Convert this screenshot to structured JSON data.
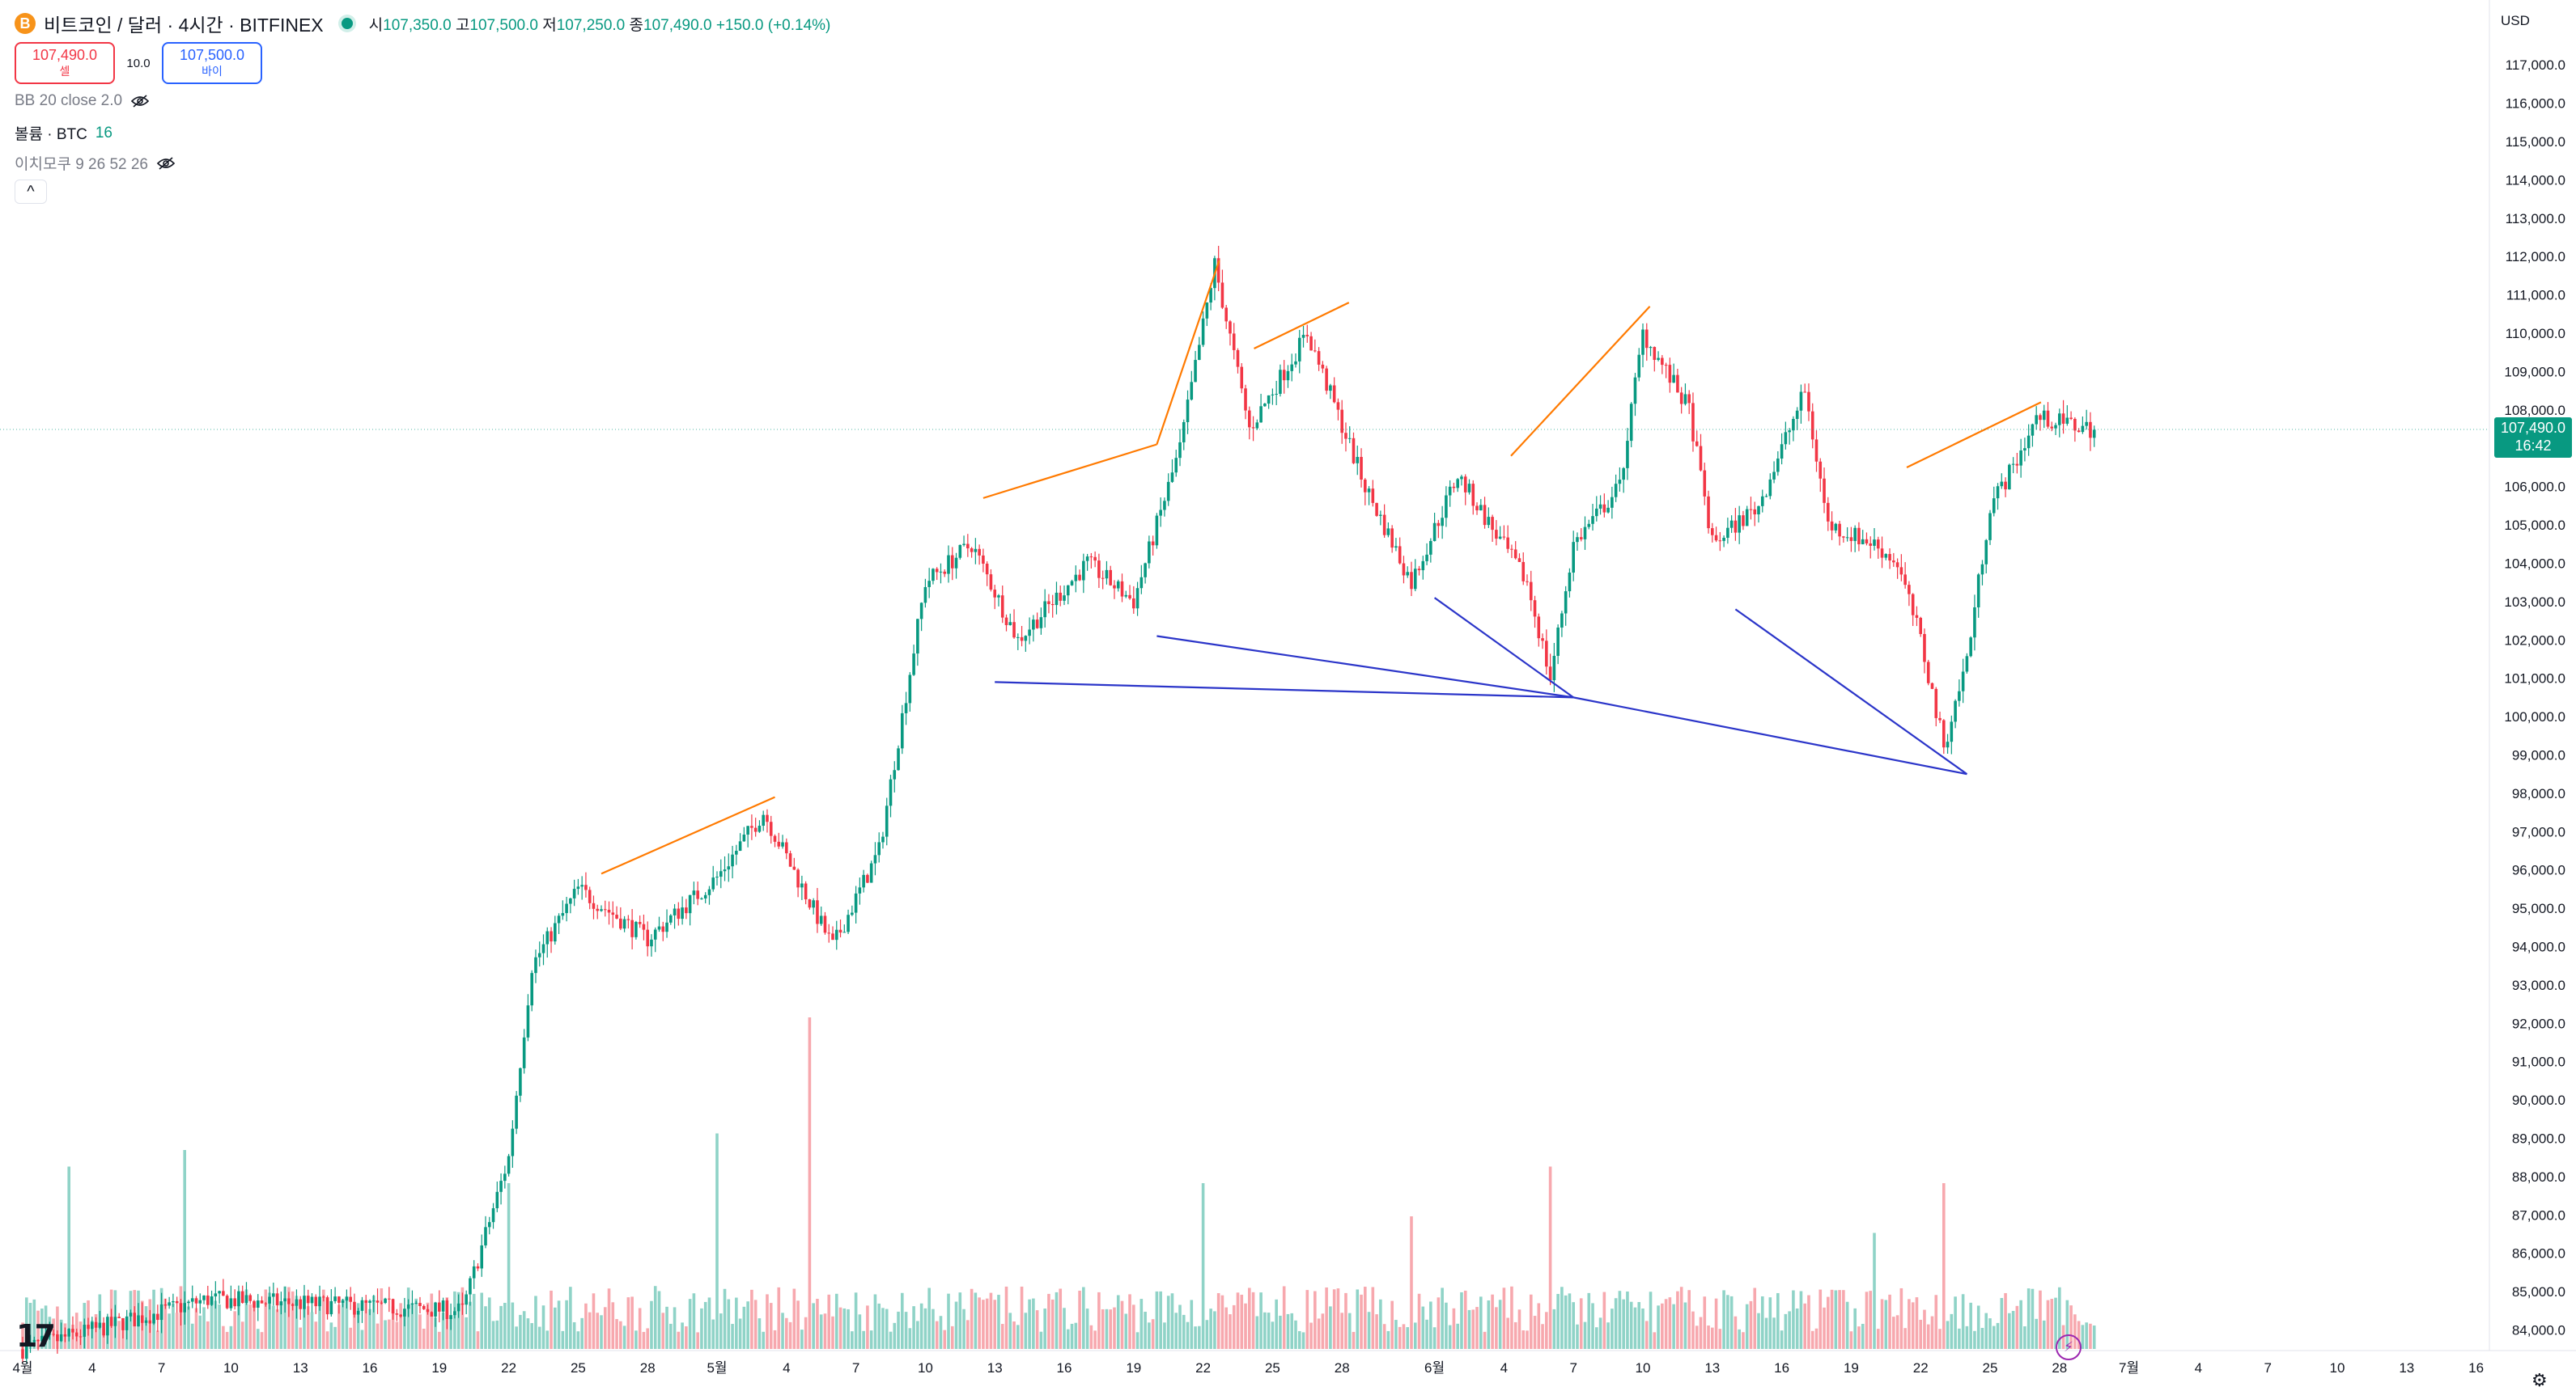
{
  "header": {
    "symbol_title": "비트코인 / 달러 · 4시간 · BITFINEX",
    "ohlc": [
      {
        "key": "시",
        "value": "107,350.0"
      },
      {
        "key": "고",
        "value": "107,500.0"
      },
      {
        "key": "저",
        "value": "107,250.0"
      },
      {
        "key": "종",
        "value": "107,490.0"
      }
    ],
    "change": "+150.0 (+0.14%)",
    "logo_text": "B"
  },
  "trade": {
    "sell_price": "107,490.0",
    "sell_label": "셀",
    "spread": "10.0",
    "buy_price": "107,500.0",
    "buy_label": "바이"
  },
  "indicators": {
    "bb": "BB 20 close 2.0",
    "volume_name": "볼륨 · BTC",
    "volume_value": "16",
    "ichimoku": "이치모쿠 9 26 52 26",
    "collapse_icon": "^"
  },
  "price_axis": {
    "currency": "USD",
    "last_price": "107,490.0",
    "countdown": "16:42"
  },
  "footer": {
    "logo": "17",
    "flash_icon": "⚡",
    "settings_icon": "⚙"
  },
  "colors": {
    "up": "#089981",
    "down": "#f23645",
    "resistance_lines": "#ff7a00",
    "support_lines": "#2b35c9",
    "volume_up": "#8fd3c7",
    "volume_down": "#f7a8ae"
  },
  "chart_data": {
    "type": "candlestick",
    "timeframe": "4h",
    "y_tick_labels": [
      "117,000.0",
      "116,000.0",
      "115,000.0",
      "114,000.0",
      "113,000.0",
      "112,000.0",
      "111,000.0",
      "110,000.0",
      "109,000.0",
      "108,000.0",
      "107,000.0",
      "106,000.0",
      "105,000.0",
      "104,000.0",
      "103,000.0",
      "102,000.0",
      "101,000.0",
      "100,000.0",
      "99,000.0",
      "98,000.0",
      "97,000.0",
      "96,000.0",
      "95,000.0",
      "94,000.0",
      "93,000.0",
      "92,000.0",
      "91,000.0",
      "90,000.0",
      "89,000.0",
      "88,000.0",
      "87,000.0",
      "86,000.0",
      "85,000.0",
      "84,000.0"
    ],
    "ylim": [
      83800,
      117300
    ],
    "x_tick_labels": [
      "4월",
      "4",
      "7",
      "10",
      "13",
      "16",
      "19",
      "22",
      "25",
      "28",
      "5월",
      "4",
      "7",
      "10",
      "13",
      "16",
      "19",
      "22",
      "25",
      "28",
      "6월",
      "4",
      "7",
      "10",
      "13",
      "16",
      "19",
      "22",
      "25",
      "28",
      "7월",
      "4",
      "7",
      "10",
      "13",
      "16"
    ],
    "x_ticks_day_index": [
      0,
      3,
      6,
      9,
      12,
      15,
      18,
      21,
      24,
      27,
      30,
      33,
      36,
      39,
      42,
      45,
      48,
      51,
      54,
      57,
      61,
      64,
      67,
      70,
      73,
      76,
      79,
      82,
      85,
      88,
      91,
      94,
      97,
      100,
      103,
      106
    ],
    "anchors": [
      {
        "day": 0,
        "price": 83500
      },
      {
        "day": 8,
        "price": 84800
      },
      {
        "day": 19,
        "price": 84500
      },
      {
        "day": 21,
        "price": 88500
      },
      {
        "day": 22,
        "price": 93500
      },
      {
        "day": 24,
        "price": 95500
      },
      {
        "day": 27,
        "price": 94200
      },
      {
        "day": 30,
        "price": 95800
      },
      {
        "day": 32,
        "price": 97500
      },
      {
        "day": 35,
        "price": 94000
      },
      {
        "day": 37,
        "price": 96500
      },
      {
        "day": 39,
        "price": 103500
      },
      {
        "day": 41,
        "price": 104500
      },
      {
        "day": 43,
        "price": 102000
      },
      {
        "day": 46,
        "price": 104000
      },
      {
        "day": 48,
        "price": 103000
      },
      {
        "day": 50,
        "price": 107000
      },
      {
        "day": 51.5,
        "price": 111800
      },
      {
        "day": 53,
        "price": 107500
      },
      {
        "day": 55.5,
        "price": 110000
      },
      {
        "day": 58,
        "price": 106000
      },
      {
        "day": 60,
        "price": 103500
      },
      {
        "day": 62,
        "price": 106300
      },
      {
        "day": 65,
        "price": 103500
      },
      {
        "day": 66,
        "price": 101000
      },
      {
        "day": 67,
        "price": 104500
      },
      {
        "day": 69,
        "price": 106000
      },
      {
        "day": 70,
        "price": 110000
      },
      {
        "day": 72,
        "price": 108000
      },
      {
        "day": 73,
        "price": 104500
      },
      {
        "day": 75,
        "price": 105500
      },
      {
        "day": 77,
        "price": 108500
      },
      {
        "day": 78,
        "price": 105000
      },
      {
        "day": 80,
        "price": 104500
      },
      {
        "day": 81,
        "price": 104000
      },
      {
        "day": 82,
        "price": 102000
      },
      {
        "day": 83,
        "price": 99200
      },
      {
        "day": 84,
        "price": 101500
      },
      {
        "day": 85,
        "price": 105500
      },
      {
        "day": 86,
        "price": 106500
      },
      {
        "day": 87,
        "price": 107800
      },
      {
        "day": 89.5,
        "price": 107490
      }
    ],
    "volume_spikes": [
      {
        "day": 2,
        "height": 0.55
      },
      {
        "day": 7,
        "height": 0.6
      },
      {
        "day": 21,
        "height": 0.5
      },
      {
        "day": 30,
        "height": 0.65
      },
      {
        "day": 34,
        "height": 1.0
      },
      {
        "day": 51,
        "height": 0.5
      },
      {
        "day": 60,
        "height": 0.4
      },
      {
        "day": 66,
        "height": 0.55
      },
      {
        "day": 80,
        "height": 0.35
      },
      {
        "day": 83,
        "height": 0.5
      }
    ],
    "trendlines": [
      {
        "kind": "resistance",
        "from": {
          "day": 25,
          "price": 95900
        },
        "to": {
          "day": 32.5,
          "price": 97900
        }
      },
      {
        "kind": "resistance",
        "from": {
          "day": 41.5,
          "price": 105700
        },
        "to": {
          "day": 49,
          "price": 107100
        }
      },
      {
        "kind": "resistance",
        "from": {
          "day": 49,
          "price": 107100
        },
        "to": {
          "day": 51.7,
          "price": 111900
        }
      },
      {
        "kind": "resistance",
        "from": {
          "day": 53.2,
          "price": 109600
        },
        "to": {
          "day": 57.3,
          "price": 110800
        }
      },
      {
        "kind": "resistance",
        "from": {
          "day": 64.3,
          "price": 106800
        },
        "to": {
          "day": 70.3,
          "price": 110700
        }
      },
      {
        "kind": "resistance",
        "from": {
          "day": 81.4,
          "price": 106500
        },
        "to": {
          "day": 87.2,
          "price": 108200
        }
      },
      {
        "kind": "support",
        "from": {
          "day": 42,
          "price": 100900
        },
        "to": {
          "day": 67,
          "price": 100500
        }
      },
      {
        "kind": "support",
        "from": {
          "day": 49,
          "price": 102100
        },
        "to": {
          "day": 67,
          "price": 100500
        }
      },
      {
        "kind": "support",
        "from": {
          "day": 61,
          "price": 103100
        },
        "to": {
          "day": 67,
          "price": 100500
        }
      },
      {
        "kind": "support",
        "from": {
          "day": 67,
          "price": 100500
        },
        "to": {
          "day": 84,
          "price": 98500
        }
      },
      {
        "kind": "support",
        "from": {
          "day": 74,
          "price": 102800
        },
        "to": {
          "day": 84,
          "price": 98500
        }
      }
    ],
    "last_price": 107490
  }
}
